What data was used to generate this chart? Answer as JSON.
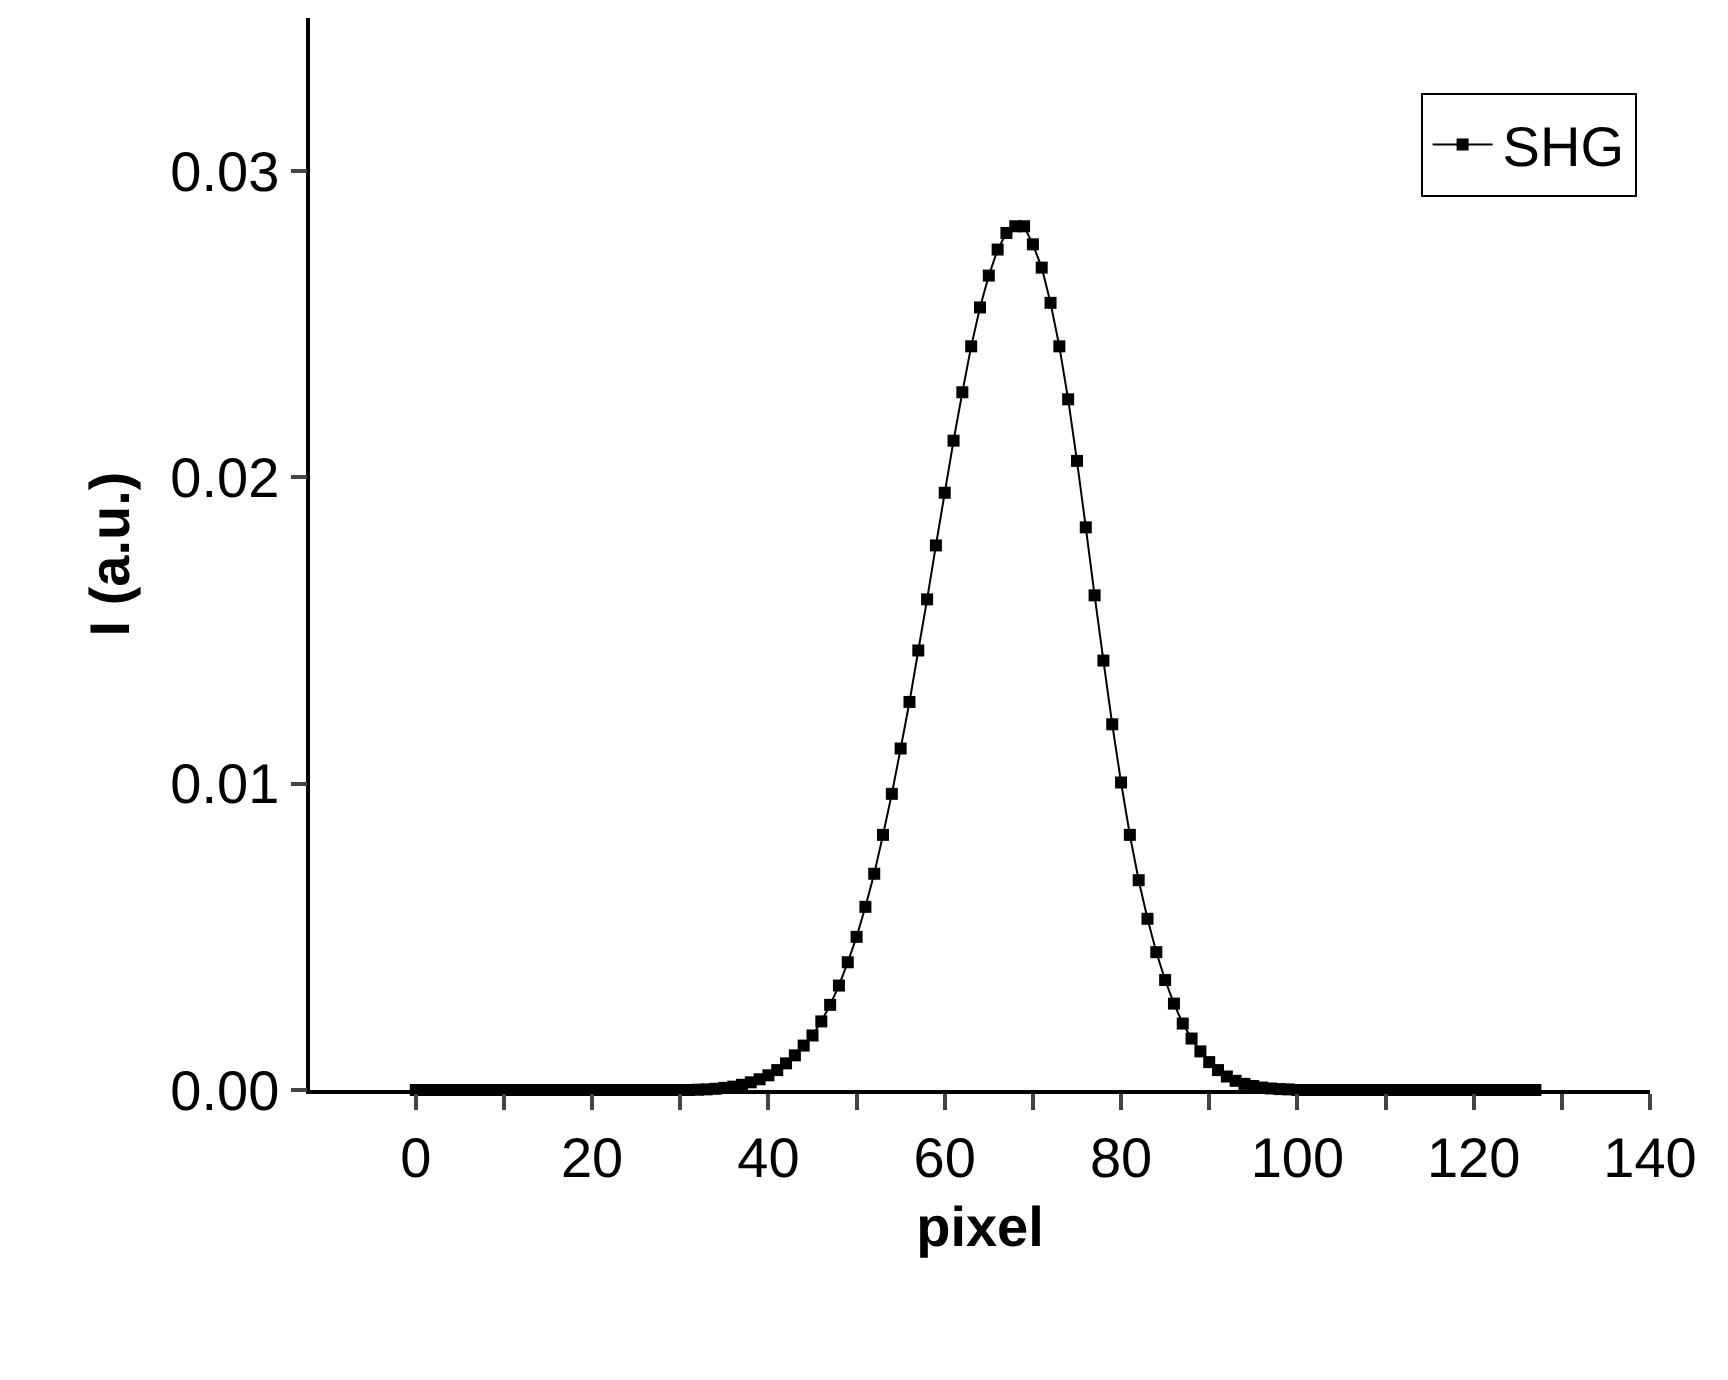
{
  "chart_data": {
    "type": "line",
    "xlabel": "pixel",
    "ylabel": "I (a.u.)",
    "x": [
      0,
      1,
      2,
      3,
      4,
      5,
      6,
      7,
      8,
      9,
      10,
      11,
      12,
      13,
      14,
      15,
      16,
      17,
      18,
      19,
      20,
      21,
      22,
      23,
      24,
      25,
      26,
      27,
      28,
      29,
      30,
      31,
      32,
      33,
      34,
      35,
      36,
      37,
      38,
      39,
      40,
      41,
      42,
      43,
      44,
      45,
      46,
      47,
      48,
      49,
      50,
      51,
      52,
      53,
      54,
      55,
      56,
      57,
      58,
      59,
      60,
      61,
      62,
      63,
      64,
      65,
      66,
      67,
      68,
      69,
      70,
      71,
      72,
      73,
      74,
      75,
      76,
      77,
      78,
      79,
      80,
      81,
      82,
      83,
      84,
      85,
      86,
      87,
      88,
      89,
      90,
      91,
      92,
      93,
      94,
      95,
      96,
      97,
      98,
      99,
      100,
      101,
      102,
      103,
      104,
      105,
      106,
      107,
      108,
      109,
      110,
      111,
      112,
      113,
      114,
      115,
      116,
      117,
      118,
      119,
      120,
      121,
      122,
      123,
      124,
      125,
      126,
      127
    ],
    "series": [
      {
        "name": "SHG",
        "color": "#000000",
        "values": [
          0,
          0,
          0,
          0,
          0,
          0,
          0,
          0,
          0,
          0,
          0,
          0,
          0,
          0,
          0,
          0,
          0,
          0,
          0,
          0,
          0,
          0,
          0,
          0,
          0,
          0,
          0,
          0,
          0,
          0,
          0,
          0,
          1e-05,
          2e-05,
          4e-05,
          7e-05,
          0.00011,
          0.00017,
          0.00025,
          0.00035,
          0.00048,
          0.00065,
          0.00087,
          0.00113,
          0.00145,
          0.00178,
          0.00224,
          0.00278,
          0.00341,
          0.00417,
          0.005,
          0.00598,
          0.00706,
          0.00833,
          0.00967,
          0.01115,
          0.01267,
          0.01435,
          0.01602,
          0.01778,
          0.0195,
          0.0212,
          0.02278,
          0.02428,
          0.02555,
          0.02659,
          0.02744,
          0.02798,
          0.0282,
          0.0282,
          0.02761,
          0.02685,
          0.0257,
          0.02428,
          0.02255,
          0.02054,
          0.01837,
          0.01615,
          0.01402,
          0.01194,
          0.01004,
          0.00833,
          0.00685,
          0.00559,
          0.0045,
          0.00359,
          0.00282,
          0.00217,
          0.00168,
          0.00126,
          0.00091,
          0.00065,
          0.00044,
          0.0003,
          0.0002,
          0.00013,
          8e-05,
          5e-05,
          3e-05,
          2e-05,
          0,
          0,
          0,
          0,
          0,
          0,
          0,
          0,
          0,
          0,
          0,
          0,
          0,
          0,
          0,
          0,
          0,
          0,
          0,
          0,
          0,
          0,
          0,
          0,
          0,
          0,
          0,
          0
        ]
      }
    ],
    "xlim": [
      -12,
      140
    ],
    "xticks": [
      0,
      {
        "value": 10,
        "label": null
      },
      20,
      {
        "value": 30,
        "label": null
      },
      40,
      {
        "value": 50,
        "label": null
      },
      60,
      {
        "value": 70,
        "label": null
      },
      80,
      {
        "value": 90,
        "label": null
      },
      100,
      {
        "value": 110,
        "label": null
      },
      120,
      {
        "value": 130,
        "label": null
      },
      140
    ],
    "ylim": [
      0,
      0.035
    ],
    "yticks": [
      {
        "value": 0,
        "label": "0.00"
      },
      {
        "value": 0.01,
        "label": "0.01"
      },
      {
        "value": 0.02,
        "label": "0.02"
      },
      {
        "value": 0.03,
        "label": "0.03"
      }
    ],
    "legend": "top right",
    "marker": "square",
    "line_style": "solid"
  }
}
